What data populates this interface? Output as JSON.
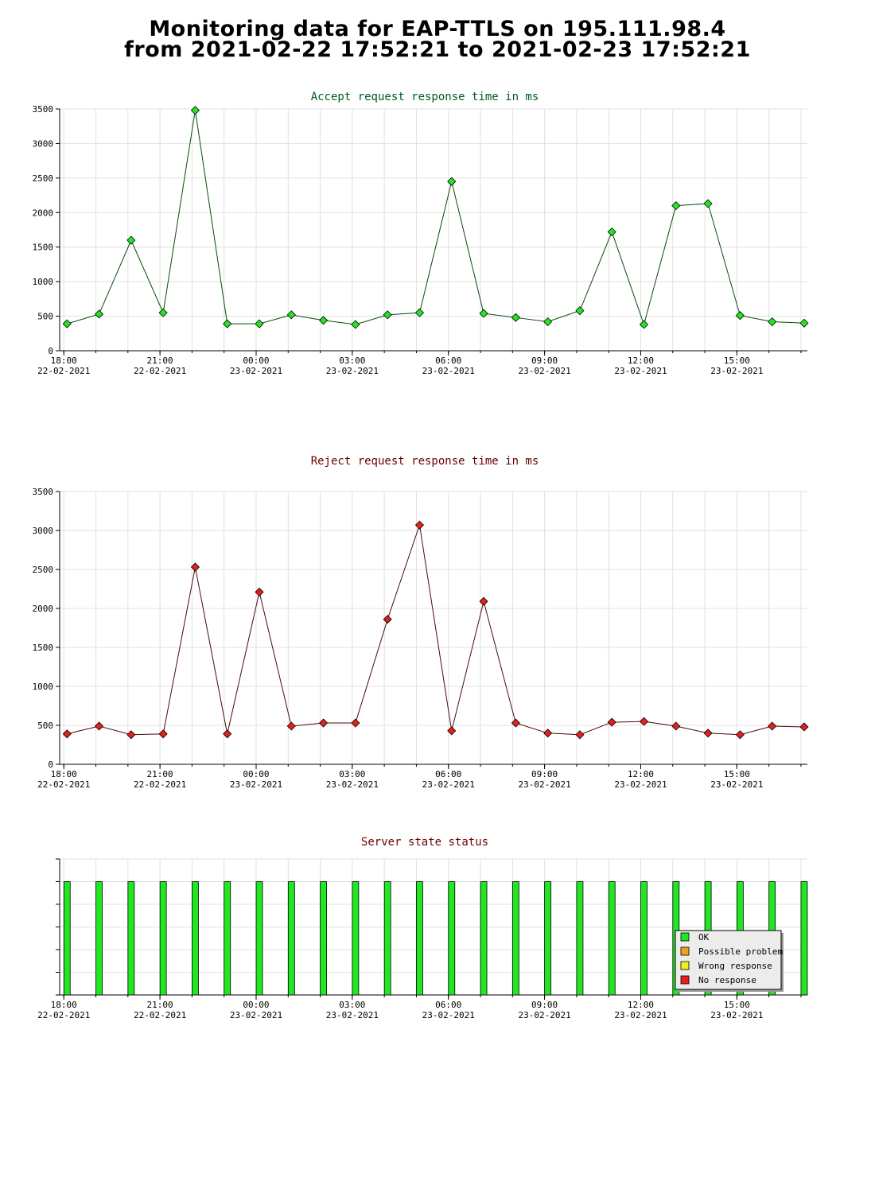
{
  "page": {
    "title_line1": "Monitoring data for EAP-TTLS on 195.111.98.4",
    "title_line2": "from 2021-02-22 17:52:21 to 2021-02-23 17:52:21"
  },
  "colors": {
    "accept_line": "#0a4a0a",
    "accept_title": "#005a1e",
    "accept_marker": "#22e622",
    "reject_line": "#4a0a0a",
    "reject_title": "#6a0000",
    "reject_marker": "#e61e1e",
    "status_title": "#6a0000",
    "ok": "#22e622",
    "possible_problem": "#f0a020",
    "wrong_response": "#f0f020",
    "no_response": "#e61e1e",
    "grid": "#e0e0e0"
  },
  "x_axis": {
    "tick_hours": [
      18,
      21,
      24,
      27,
      30,
      33,
      36,
      39
    ],
    "tick_labels": [
      {
        "time": "18:00",
        "date": "22-02-2021"
      },
      {
        "time": "21:00",
        "date": "22-02-2021"
      },
      {
        "time": "00:00",
        "date": "23-02-2021"
      },
      {
        "time": "03:00",
        "date": "23-02-2021"
      },
      {
        "time": "06:00",
        "date": "23-02-2021"
      },
      {
        "time": "09:00",
        "date": "23-02-2021"
      },
      {
        "time": "12:00",
        "date": "23-02-2021"
      },
      {
        "time": "15:00",
        "date": "23-02-2021"
      }
    ],
    "range_hours": [
      17.87,
      41.2
    ]
  },
  "chart_data": [
    {
      "type": "line",
      "title": "Accept request response time in ms",
      "ylim": [
        0,
        3500
      ],
      "yticks": [
        0,
        500,
        1000,
        1500,
        2000,
        2500,
        3000,
        3500
      ],
      "grid": true,
      "x_hours": [
        18.1,
        19.1,
        20.1,
        21.1,
        22.1,
        23.1,
        24.1,
        25.1,
        26.1,
        27.1,
        28.1,
        29.1,
        30.1,
        31.1,
        32.1,
        33.1,
        34.1,
        35.1,
        36.1,
        37.1,
        38.1,
        39.1,
        40.1,
        41.1
      ],
      "values": [
        390,
        530,
        1600,
        550,
        3480,
        390,
        390,
        520,
        440,
        380,
        520,
        550,
        2450,
        540,
        480,
        420,
        580,
        1720,
        380,
        2100,
        2130,
        510,
        420,
        400
      ]
    },
    {
      "type": "line",
      "title": "Reject request response time in ms",
      "ylim": [
        0,
        3500
      ],
      "yticks": [
        0,
        500,
        1000,
        1500,
        2000,
        2500,
        3000,
        3500
      ],
      "grid": true,
      "x_hours": [
        18.1,
        19.1,
        20.1,
        21.1,
        22.1,
        23.1,
        24.1,
        25.1,
        26.1,
        27.1,
        28.1,
        29.1,
        30.1,
        31.1,
        32.1,
        33.1,
        34.1,
        35.1,
        36.1,
        37.1,
        38.1,
        39.1,
        40.1,
        41.1
      ],
      "values": [
        390,
        490,
        380,
        390,
        2530,
        390,
        2210,
        490,
        530,
        530,
        1860,
        3070,
        430,
        2090,
        530,
        400,
        380,
        540,
        550,
        490,
        400,
        380,
        490,
        480
      ]
    },
    {
      "type": "bar",
      "title": "Server state status",
      "x_hours": [
        18.1,
        19.1,
        20.1,
        21.1,
        22.1,
        23.1,
        24.1,
        25.1,
        26.1,
        27.1,
        28.1,
        29.1,
        30.1,
        31.1,
        32.1,
        33.1,
        34.1,
        35.1,
        36.1,
        37.1,
        38.1,
        39.1,
        40.1,
        41.1
      ],
      "states": [
        "OK",
        "OK",
        "OK",
        "OK",
        "OK",
        "OK",
        "OK",
        "OK",
        "OK",
        "OK",
        "OK",
        "OK",
        "OK",
        "OK",
        "OK",
        "OK",
        "OK",
        "OK",
        "OK",
        "OK",
        "OK",
        "OK",
        "OK",
        "OK"
      ],
      "legend": [
        {
          "label": "OK",
          "color_key": "ok"
        },
        {
          "label": "Possible problem",
          "color_key": "possible_problem"
        },
        {
          "label": "Wrong response",
          "color_key": "wrong_response"
        },
        {
          "label": "No response",
          "color_key": "no_response"
        }
      ],
      "legend_position": "bottom-right"
    }
  ]
}
